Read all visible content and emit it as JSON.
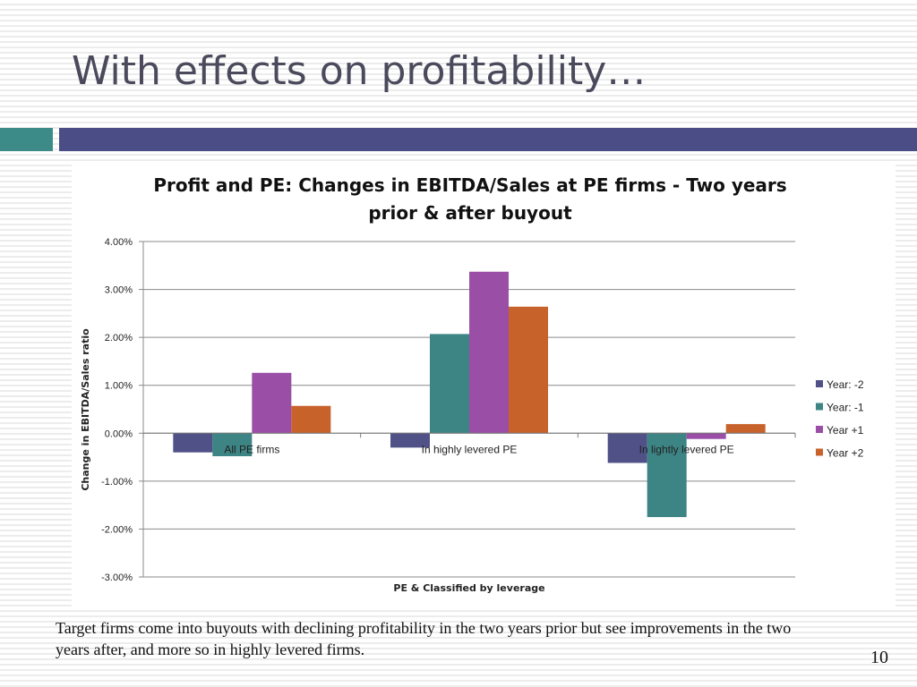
{
  "slide": {
    "title": "With effects on profitability…",
    "caption": "Target firms come into buyouts with declining profitability in the two years prior but see improvements in the two years after, and more so in highly levered firms.",
    "page_number": "10"
  },
  "chart_data": {
    "type": "bar",
    "title": "Profit and PE: Changes in EBITDA/Sales at PE firms - Two years prior & after buyout",
    "xlabel": "PE & Classified by leverage",
    "ylabel": "Change in EBITDA/Sales ratio",
    "ylim": [
      -0.03,
      0.04
    ],
    "yticks": [
      0.04,
      0.03,
      0.02,
      0.01,
      0.0,
      -0.01,
      -0.02,
      -0.03
    ],
    "ytick_labels": [
      "4.00%",
      "3.00%",
      "2.00%",
      "1.00%",
      "0.00%",
      "-1.00%",
      "-2.00%",
      "-3.00%"
    ],
    "categories": [
      "All PE firms",
      "In highly levered PE",
      "In lightly levered PE"
    ],
    "series": [
      {
        "name": "Year: -2",
        "color": "#4f5187",
        "values": [
          -0.004,
          -0.003,
          -0.0062
        ]
      },
      {
        "name": "Year: -1",
        "color": "#3d8484",
        "values": [
          -0.0048,
          0.0207,
          -0.0175
        ]
      },
      {
        "name": "Year +1",
        "color": "#9a4ea6",
        "values": [
          0.0126,
          0.0337,
          -0.0012
        ]
      },
      {
        "name": "Year +2",
        "color": "#c8622b",
        "values": [
          0.0057,
          0.0264,
          0.0019
        ]
      }
    ],
    "legend_position": "right",
    "grid": true
  }
}
